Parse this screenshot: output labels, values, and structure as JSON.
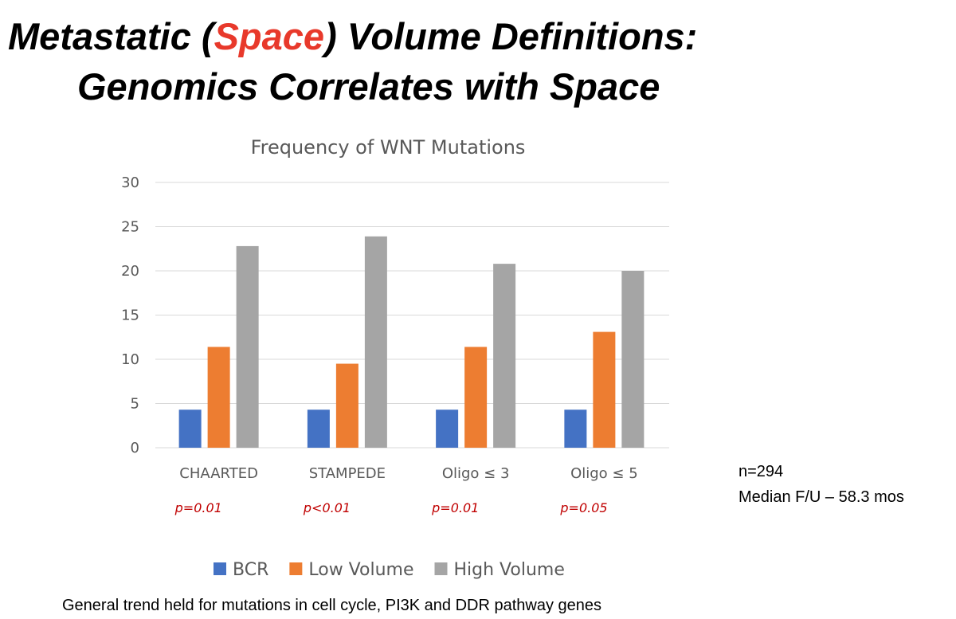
{
  "slide": {
    "title_line1": [
      "Metastatic (",
      "Space",
      ") Volume Definitions:"
    ],
    "title_line2": "Genomics Correlates with Space",
    "notes": [
      "n=294",
      "Median F/U – 58.3 mos"
    ],
    "footnote": "General trend held for mutations in cell cycle, PI3K and DDR pathway genes"
  },
  "chart_data": {
    "type": "bar",
    "title": "Frequency of WNT Mutations",
    "categories": [
      "CHAARTED",
      "STAMPEDE",
      "Oligo ≤ 3",
      "Oligo ≤ 5"
    ],
    "series": [
      {
        "name": "BCR",
        "color": "#4472c4",
        "values": [
          4.3,
          4.3,
          4.3,
          4.3
        ]
      },
      {
        "name": "Low Volume",
        "color": "#ed7d31",
        "values": [
          11.4,
          9.5,
          11.4,
          13.1
        ]
      },
      {
        "name": "High Volume",
        "color": "#a5a5a5",
        "values": [
          22.8,
          23.9,
          20.8,
          20.0
        ]
      }
    ],
    "annotations": [
      "p=0.01",
      "p<0.01",
      "p=0.01",
      "p=0.05"
    ],
    "ylim": [
      0,
      30
    ],
    "yticks": [
      0,
      5,
      10,
      15,
      20,
      25,
      30
    ],
    "grid": true,
    "legend": "bottom"
  }
}
